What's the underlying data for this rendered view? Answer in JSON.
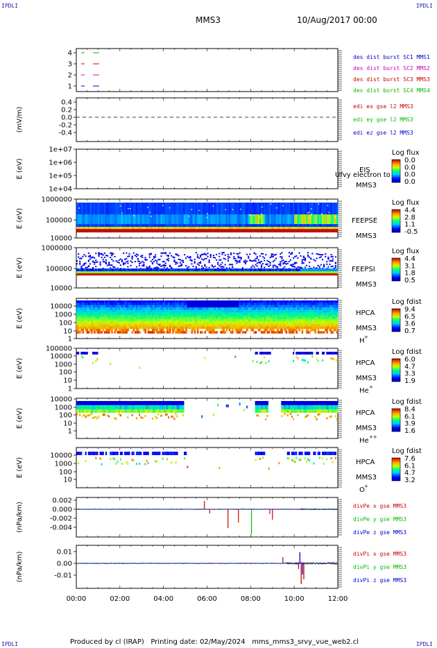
{
  "header": {
    "corner_label": "IPDLI",
    "spacecraft": "MMS3",
    "date": "10/Aug/2017 00:00"
  },
  "footer": {
    "text": "Produced by cl (IRAP)   Printing date: 02/May/2024   mms_mms3_srvy_vue_web2.cl"
  },
  "time_axis": {
    "ticks": [
      "00:00",
      "02:00",
      "04:00",
      "06:00",
      "08:00",
      "10:00",
      "12:00"
    ]
  },
  "colors": {
    "axis": "#000000",
    "blue": "#0000cc",
    "red": "#cc0000",
    "green": "#00bb00",
    "magenta": "#cc00cc"
  },
  "chart_data": [
    {
      "type": "line",
      "id": "burst",
      "yticks": [
        "4",
        "3",
        "2",
        "1"
      ],
      "ylim": [
        0.5,
        4.5
      ],
      "legend": [
        {
          "label": "des dist burst SC1 MMS1",
          "color": "#0000cc"
        },
        {
          "label": "des dist burst SC2 MMS2",
          "color": "#cc00cc"
        },
        {
          "label": "des dist burst SC3 MMS3",
          "color": "#cc0000"
        },
        {
          "label": "des dist burst SC4 MMS4",
          "color": "#00bb00"
        }
      ]
    },
    {
      "type": "line",
      "id": "edi",
      "ylabel": "(mV/m)",
      "yticks": [
        "0.4",
        "0.2",
        "0.0",
        "-0.2",
        "-0.4"
      ],
      "ylim": [
        -0.5,
        0.5
      ],
      "legend": [
        {
          "label": "edi ex gse l2 MMS3",
          "color": "#cc0000"
        },
        {
          "label": "edi ey gse l2 MMS3",
          "color": "#00bb00"
        },
        {
          "label": "edi ez gse l2 MMS3",
          "color": "#0000cc"
        }
      ]
    },
    {
      "type": "heatmap",
      "id": "eis",
      "ylabel": "E (eV)",
      "yticks": [
        "1e+07",
        "1e+06",
        "1e+05",
        "1e+04"
      ],
      "scale": "log",
      "instrument": "EIS",
      "overlay": "Ufvy electron to",
      "sc": "MMS3",
      "cbar_title": "Log flux",
      "cbar_ticks": [
        "0.0",
        "0.0",
        "0.0",
        "0.0"
      ]
    },
    {
      "type": "heatmap",
      "id": "feepse",
      "ylabel": "E (eV)",
      "yticks": [
        "1000000",
        "100000",
        "10000"
      ],
      "scale": "log",
      "instrument": "FEEPSE",
      "sc": "MMS3",
      "cbar_title": "Log flux",
      "cbar_ticks": [
        "4.4",
        "2.8",
        "1.1",
        "-0.5"
      ]
    },
    {
      "type": "heatmap",
      "id": "feepsi",
      "ylabel": "E (eV)",
      "yticks": [
        "1000000",
        "100000",
        "10000"
      ],
      "scale": "log",
      "instrument": "FEEPSI",
      "sc": "MMS3",
      "cbar_title": "Log flux",
      "cbar_ticks": [
        "4.4",
        "3.1",
        "1.8",
        "0.5"
      ]
    },
    {
      "type": "heatmap",
      "id": "hpca-h",
      "ylabel": "E (eV)",
      "yticks": [
        "10000",
        "1000",
        "100",
        "10",
        "1"
      ],
      "scale": "log",
      "instrument": "HPCA",
      "sc": "MMS3",
      "species": "H",
      "charge": "+",
      "cbar_title": "Log fdist",
      "cbar_ticks": [
        "9.4",
        "6.5",
        "3.6",
        "0.7"
      ]
    },
    {
      "type": "heatmap",
      "id": "hpca-he",
      "ylabel": "E (eV)",
      "yticks": [
        "100000",
        "10000",
        "1000",
        "100",
        "10",
        "1"
      ],
      "scale": "log",
      "instrument": "HPCA",
      "sc": "MMS3",
      "species": "He",
      "charge": "+",
      "cbar_title": "Log fdist",
      "cbar_ticks": [
        "6.0",
        "4.7",
        "3.3",
        "1.9"
      ]
    },
    {
      "type": "heatmap",
      "id": "hpca-he2",
      "ylabel": "E (eV)",
      "yticks": [
        "10000",
        "1000",
        "100",
        "10",
        "1"
      ],
      "scale": "log",
      "instrument": "HPCA",
      "sc": "MMS3",
      "species": "He",
      "charge": "++",
      "cbar_title": "Log fdist",
      "cbar_ticks": [
        "8.4",
        "6.1",
        "3.9",
        "1.6"
      ]
    },
    {
      "type": "heatmap",
      "id": "hpca-o",
      "ylabel": "E (eV)",
      "yticks": [
        "10000",
        "1000",
        "100",
        "10"
      ],
      "scale": "log",
      "instrument": "HPCA",
      "sc": "MMS3",
      "species": "O",
      "charge": "+",
      "cbar_title": "Log fdist",
      "cbar_ticks": [
        "7.6",
        "6.1",
        "4.7",
        "3.2"
      ]
    },
    {
      "type": "line",
      "id": "divpe",
      "ylabel": "(nPa/km)",
      "yticks": [
        "0.002",
        "0.000",
        "-0.002",
        "-0.004"
      ],
      "ylim": [
        -0.0055,
        0.0025
      ],
      "legend": [
        {
          "label": "divPe x gse MMS3",
          "color": "#cc0000"
        },
        {
          "label": "divPe y gse MMS3",
          "color": "#00bb00"
        },
        {
          "label": "divPe z gse MMS3",
          "color": "#0000cc"
        }
      ]
    },
    {
      "type": "line",
      "id": "divpi",
      "ylabel": "(nPa/km)",
      "yticks": [
        "0.01",
        "0.00",
        "-0.01"
      ],
      "ylim": [
        -0.02,
        0.015
      ],
      "legend": [
        {
          "label": "divPi x gse MMS3",
          "color": "#cc0000"
        },
        {
          "label": "divPi y gse MMS3",
          "color": "#00bb00"
        },
        {
          "label": "divPi z gse MMS3",
          "color": "#0000cc"
        }
      ]
    }
  ]
}
